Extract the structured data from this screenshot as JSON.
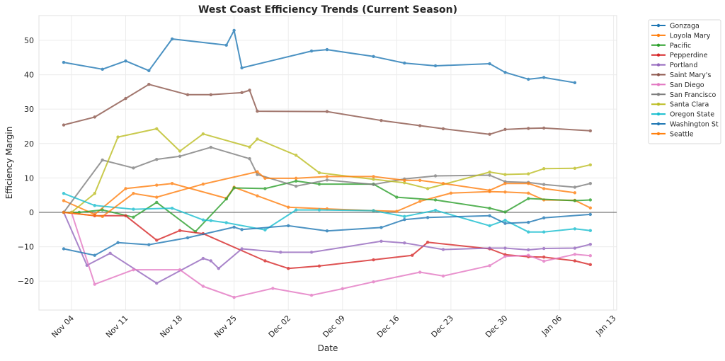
{
  "chart_data": {
    "type": "line",
    "title": "West Coast Efficiency Trends (Current Season)",
    "xlabel": "Date",
    "ylabel": "Efficiency Margin",
    "x_unit": "days since Nov 04",
    "xlim": [
      -4.2,
      70.4
    ],
    "ylim": [
      -28.4,
      57.2
    ],
    "x_ticks": [
      {
        "value": 0,
        "label": "Nov 04"
      },
      {
        "value": 7,
        "label": "Nov 11"
      },
      {
        "value": 14,
        "label": "Nov 18"
      },
      {
        "value": 21,
        "label": "Nov 25"
      },
      {
        "value": 28,
        "label": "Dec 02"
      },
      {
        "value": 35,
        "label": "Dec 09"
      },
      {
        "value": 42,
        "label": "Dec 16"
      },
      {
        "value": 49,
        "label": "Dec 23"
      },
      {
        "value": 56,
        "label": "Dec 30"
      },
      {
        "value": 63,
        "label": "Jan 06"
      },
      {
        "value": 70,
        "label": "Jan 13"
      }
    ],
    "y_ticks": [
      {
        "value": 50,
        "label": "50"
      },
      {
        "value": 40,
        "label": "40"
      },
      {
        "value": 30,
        "label": "30"
      },
      {
        "value": 20,
        "label": "20"
      },
      {
        "value": 10,
        "label": "10"
      },
      {
        "value": 0,
        "label": "0"
      },
      {
        "value": -10,
        "label": "−10"
      },
      {
        "value": -20,
        "label": "−20"
      }
    ],
    "grid": true,
    "reference_line": 0,
    "legend_position": "outside-top-right",
    "series": [
      {
        "name": "Gonzaga",
        "color": "#1f77b4",
        "x": [
          -1,
          4,
          7,
          10,
          13,
          20,
          21,
          22,
          31,
          33,
          39,
          43,
          47,
          54,
          56,
          59,
          61,
          65
        ],
        "y": [
          43.6,
          41.6,
          44.0,
          41.2,
          50.4,
          48.6,
          52.9,
          42.0,
          46.9,
          47.3,
          45.3,
          43.4,
          42.6,
          43.2,
          40.7,
          38.7,
          39.2,
          37.7
        ]
      },
      {
        "name": "Loyola Mary",
        "color": "#ff7f0e",
        "x": [
          -1,
          3,
          7,
          11,
          13,
          20,
          21,
          24,
          28,
          33,
          39,
          42,
          45,
          49,
          54,
          56,
          59,
          61,
          65,
          67
        ],
        "y": [
          3.4,
          -0.6,
          6.9,
          7.9,
          8.4,
          4.1,
          7.3,
          4.8,
          1.5,
          1.0,
          0.5,
          0.3,
          3.2,
          5.6,
          6.0,
          5.9,
          5.6,
          3.6,
          3.5,
          1.3
        ]
      },
      {
        "name": "Pacific",
        "color": "#2ca02c",
        "x": [
          -1,
          1,
          4,
          8,
          11,
          16,
          20,
          21,
          25,
          29,
          32,
          39,
          42,
          47,
          54,
          56,
          59,
          65,
          67
        ],
        "y": [
          0,
          0,
          0.7,
          -1.4,
          2.9,
          -5.6,
          3.9,
          7.1,
          6.9,
          9.1,
          8.2,
          8.2,
          4.4,
          3.6,
          1.2,
          0.1,
          4.0,
          3.4,
          3.6
        ]
      },
      {
        "name": "Pepperdine",
        "color": "#d62728",
        "x": [
          -1,
          3,
          7,
          11,
          14,
          17,
          25,
          28,
          32,
          39,
          44,
          46,
          54,
          56,
          59,
          61,
          65,
          67
        ],
        "y": [
          0,
          -1.0,
          -1.0,
          -8.1,
          -5.3,
          -6.2,
          -14.1,
          -16.3,
          -15.6,
          -13.8,
          -12.5,
          -8.7,
          -10.6,
          -12.3,
          -12.9,
          -13.0,
          -14.1,
          -15.2
        ]
      },
      {
        "name": "Portland",
        "color": "#9467bd",
        "x": [
          -1,
          2,
          5,
          11,
          17,
          18,
          19,
          22,
          27,
          31,
          40,
          43,
          48,
          54,
          56,
          59,
          61,
          65,
          67
        ],
        "y": [
          0,
          -15.4,
          -11.9,
          -20.6,
          -13.4,
          -14.1,
          -16.3,
          -10.6,
          -11.6,
          -11.6,
          -8.4,
          -8.9,
          -10.8,
          -10.4,
          -10.4,
          -10.9,
          -10.5,
          -10.4,
          -9.3
        ]
      },
      {
        "name": "Saint Mary's",
        "color": "#8c564b",
        "x": [
          -1,
          3,
          7,
          10,
          15,
          18,
          22,
          23,
          24,
          33,
          40,
          45,
          48,
          54,
          56,
          59,
          61,
          67
        ],
        "y": [
          25.4,
          27.7,
          33.1,
          37.2,
          34.2,
          34.2,
          34.8,
          35.5,
          29.4,
          29.3,
          26.7,
          25.2,
          24.3,
          22.7,
          24.1,
          24.4,
          24.5,
          23.7
        ]
      },
      {
        "name": "San Diego",
        "color": "#e377c2",
        "x": [
          0,
          3,
          8,
          14,
          17,
          21,
          26,
          31,
          35,
          39,
          45,
          48,
          54,
          56,
          59,
          61,
          65,
          67
        ],
        "y": [
          0,
          -20.9,
          -16.7,
          -16.7,
          -21.5,
          -24.7,
          -22.1,
          -24.1,
          -22.2,
          -20.2,
          -17.4,
          -18.5,
          -15.5,
          -12.8,
          -12.5,
          -14.2,
          -12.2,
          -12.6
        ]
      },
      {
        "name": "San Francisco",
        "color": "#7f7f7f",
        "x": [
          -1,
          4,
          8,
          11,
          14,
          18,
          23,
          24,
          29,
          33,
          39,
          43,
          47,
          54,
          56,
          59,
          61,
          65,
          67
        ],
        "y": [
          0,
          15.2,
          12.9,
          15.4,
          16.3,
          18.9,
          15.6,
          11.0,
          7.6,
          9.4,
          8.1,
          9.7,
          10.6,
          10.8,
          8.9,
          8.7,
          8.1,
          7.3,
          8.4
        ]
      },
      {
        "name": "Santa Clara",
        "color": "#bcbd22",
        "x": [
          0,
          3,
          6,
          11,
          14,
          17,
          23,
          24,
          29,
          32,
          39,
          43,
          46,
          54,
          56,
          59,
          61,
          65,
          67
        ],
        "y": [
          0,
          5.5,
          21.9,
          24.3,
          17.8,
          22.8,
          19.0,
          21.3,
          16.6,
          11.5,
          9.6,
          8.6,
          6.9,
          11.7,
          11.0,
          11.2,
          12.7,
          12.8,
          13.8
        ]
      },
      {
        "name": "Oregon State",
        "color": "#17becf",
        "x": [
          -1,
          3,
          8,
          13,
          17,
          18,
          20,
          25,
          29,
          32,
          39,
          43,
          47,
          54,
          56,
          59,
          61,
          65,
          67
        ],
        "y": [
          5.5,
          2.0,
          0.9,
          1.2,
          -2.2,
          -2.4,
          -3.0,
          -5.1,
          0.7,
          0.7,
          0.5,
          -1.2,
          0.6,
          -3.9,
          -2.3,
          -5.7,
          -5.7,
          -4.8,
          -5.3
        ]
      },
      {
        "name": "Washington St",
        "color": "#1f77b4",
        "x": [
          -1,
          3,
          6,
          10,
          15,
          21,
          22,
          28,
          33,
          40,
          43,
          46,
          54,
          56,
          59,
          61,
          67
        ],
        "y": [
          -10.6,
          -12.5,
          -8.8,
          -9.4,
          -7.4,
          -4.3,
          -5.0,
          -3.9,
          -5.4,
          -4.4,
          -2.1,
          -1.5,
          -1.0,
          -3.2,
          -2.9,
          -1.6,
          -0.6
        ]
      },
      {
        "name": "Seattle",
        "color": "#ff7f0e",
        "x": [
          -1,
          4,
          8,
          11,
          17,
          24,
          25,
          29,
          33,
          39,
          43,
          45,
          48,
          54,
          56,
          59,
          61,
          65
        ],
        "y": [
          0,
          -1.2,
          5.5,
          4.4,
          8.2,
          11.8,
          9.9,
          9.9,
          10.4,
          10.4,
          9.3,
          9.3,
          8.4,
          6.4,
          8.4,
          8.4,
          6.9,
          5.7
        ]
      }
    ]
  }
}
